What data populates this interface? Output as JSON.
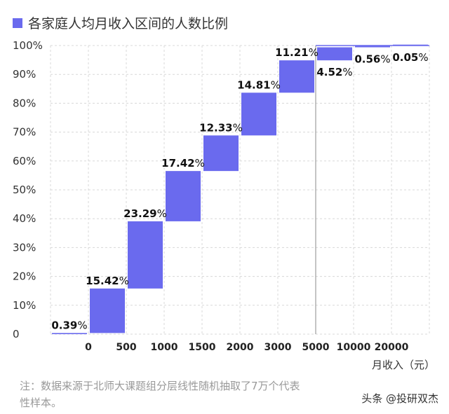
{
  "chart_data": {
    "type": "bar",
    "title": "各家庭人均月收入区间的人数比例",
    "xlabel": "月收入（元）",
    "ylabel": "",
    "ylim": [
      0,
      100
    ],
    "y_ticks": [
      "0",
      "10%",
      "20%",
      "30%",
      "40%",
      "50%",
      "60%",
      "70%",
      "80%",
      "90%",
      "100%"
    ],
    "x_ticks": [
      "0",
      "500",
      "1000",
      "1500",
      "2000",
      "3000",
      "5000",
      "10000",
      "20000"
    ],
    "segments": [
      {
        "range": "0以下",
        "value": 0.39,
        "label_num": "0.39",
        "label_pct": "%"
      },
      {
        "range": "0-500",
        "value": 15.42,
        "label_num": "15.42",
        "label_pct": "%"
      },
      {
        "range": "500-1000",
        "value": 23.29,
        "label_num": "23.29",
        "label_pct": "%"
      },
      {
        "range": "1000-1500",
        "value": 17.42,
        "label_num": "17.42",
        "label_pct": "%"
      },
      {
        "range": "1500-2000",
        "value": 12.33,
        "label_num": "12.33",
        "label_pct": "%"
      },
      {
        "range": "2000-3000",
        "value": 14.81,
        "label_num": "14.81",
        "label_pct": "%"
      },
      {
        "range": "3000-5000",
        "value": 11.21,
        "label_num": "11.21",
        "label_pct": "%"
      },
      {
        "range": "5000-10000",
        "value": 4.52,
        "label_num": "4.52",
        "label_pct": "%"
      },
      {
        "range": "10000-20000",
        "value": 0.56,
        "label_num": "0.56",
        "label_pct": "%"
      },
      {
        "range": "20000以上",
        "value": 0.05,
        "label_num": "0.05",
        "label_pct": "%"
      }
    ],
    "colors": {
      "bar": "#6a6aee"
    },
    "grid": true,
    "legend": "top-left"
  },
  "note": {
    "line1": "注：数据来源于北师大课题组分层线性随机抽取了7万个代表",
    "line2": "性样本。"
  },
  "watermark": "头条 @投研双杰"
}
